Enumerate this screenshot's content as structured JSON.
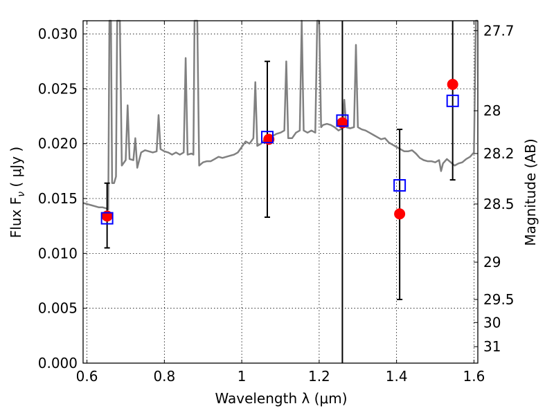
{
  "chart_data": {
    "type": "scatter",
    "title": "",
    "xlabel": "Wavelength  λ (μm)",
    "ylabel": "Flux  F",
    "ylabel_sub": "ν",
    "ylabel_unit": " ( μJy )",
    "y2label": "Magnitude (AB)",
    "xlim": [
      0.59,
      1.61
    ],
    "ylim": [
      0.0,
      0.0312
    ],
    "grid": true,
    "x_ticks": [
      {
        "value": 0.6,
        "label": "0.6"
      },
      {
        "value": 0.8,
        "label": "0.8"
      },
      {
        "value": 1.0,
        "label": "1"
      },
      {
        "value": 1.2,
        "label": "1.2"
      },
      {
        "value": 1.4,
        "label": "1.4"
      },
      {
        "value": 1.6,
        "label": "1.6"
      }
    ],
    "y_ticks": [
      {
        "value": 0.0,
        "label": "0.000"
      },
      {
        "value": 0.005,
        "label": "0.005"
      },
      {
        "value": 0.01,
        "label": "0.010"
      },
      {
        "value": 0.015,
        "label": "0.015"
      },
      {
        "value": 0.02,
        "label": "0.020"
      },
      {
        "value": 0.025,
        "label": "0.025"
      },
      {
        "value": 0.03,
        "label": "0.030"
      }
    ],
    "y2_ticks": [
      {
        "label": "27.7",
        "flux": 0.0303
      },
      {
        "label": "28",
        "flux": 0.023
      },
      {
        "label": "28.2",
        "flux": 0.0191
      },
      {
        "label": "28.5",
        "flux": 0.0145
      },
      {
        "label": "29",
        "flux": 0.0092
      },
      {
        "label": "29.5",
        "flux": 0.0058
      },
      {
        "label": "30",
        "flux": 0.0037
      },
      {
        "label": "31",
        "flux": 0.0015
      }
    ],
    "series": [
      {
        "name": "",
        "kind": "line",
        "color": "#808080",
        "points": [
          [
            0.59,
            0.0146
          ],
          [
            0.6,
            0.0145
          ],
          [
            0.61,
            0.0144
          ],
          [
            0.62,
            0.0143
          ],
          [
            0.63,
            0.0142
          ],
          [
            0.64,
            0.0142
          ],
          [
            0.65,
            0.0141
          ],
          [
            0.655,
            0.014
          ],
          [
            0.658,
            0.0312
          ],
          [
            0.662,
            0.0312
          ],
          [
            0.665,
            0.0164
          ],
          [
            0.67,
            0.0164
          ],
          [
            0.675,
            0.017
          ],
          [
            0.678,
            0.0312
          ],
          [
            0.685,
            0.0312
          ],
          [
            0.69,
            0.018
          ],
          [
            0.7,
            0.0185
          ],
          [
            0.705,
            0.0235
          ],
          [
            0.71,
            0.0186
          ],
          [
            0.72,
            0.0185
          ],
          [
            0.725,
            0.0205
          ],
          [
            0.73,
            0.0178
          ],
          [
            0.74,
            0.0192
          ],
          [
            0.75,
            0.0194
          ],
          [
            0.76,
            0.0193
          ],
          [
            0.77,
            0.0192
          ],
          [
            0.78,
            0.0193
          ],
          [
            0.785,
            0.0226
          ],
          [
            0.79,
            0.0195
          ],
          [
            0.8,
            0.0193
          ],
          [
            0.81,
            0.0192
          ],
          [
            0.82,
            0.019
          ],
          [
            0.83,
            0.0192
          ],
          [
            0.84,
            0.019
          ],
          [
            0.85,
            0.0192
          ],
          [
            0.855,
            0.0278
          ],
          [
            0.86,
            0.019
          ],
          [
            0.87,
            0.0191
          ],
          [
            0.875,
            0.019
          ],
          [
            0.878,
            0.0312
          ],
          [
            0.885,
            0.0312
          ],
          [
            0.89,
            0.018
          ],
          [
            0.9,
            0.0183
          ],
          [
            0.91,
            0.0184
          ],
          [
            0.92,
            0.0184
          ],
          [
            0.93,
            0.0186
          ],
          [
            0.94,
            0.0188
          ],
          [
            0.95,
            0.0187
          ],
          [
            0.96,
            0.0188
          ],
          [
            0.97,
            0.0189
          ],
          [
            0.98,
            0.019
          ],
          [
            0.99,
            0.0192
          ],
          [
            1.0,
            0.0197
          ],
          [
            1.01,
            0.0202
          ],
          [
            1.02,
            0.02
          ],
          [
            1.03,
            0.0205
          ],
          [
            1.035,
            0.0256
          ],
          [
            1.04,
            0.0198
          ],
          [
            1.05,
            0.02
          ],
          [
            1.06,
            0.0204
          ],
          [
            1.07,
            0.0206
          ],
          [
            1.08,
            0.0207
          ],
          [
            1.09,
            0.0209
          ],
          [
            1.1,
            0.021
          ],
          [
            1.11,
            0.0212
          ],
          [
            1.115,
            0.0275
          ],
          [
            1.12,
            0.0205
          ],
          [
            1.13,
            0.0205
          ],
          [
            1.14,
            0.021
          ],
          [
            1.15,
            0.0212
          ],
          [
            1.155,
            0.0312
          ],
          [
            1.16,
            0.0212
          ],
          [
            1.17,
            0.021
          ],
          [
            1.18,
            0.0212
          ],
          [
            1.19,
            0.021
          ],
          [
            1.195,
            0.0312
          ],
          [
            1.2,
            0.0312
          ],
          [
            1.205,
            0.0215
          ],
          [
            1.21,
            0.0217
          ],
          [
            1.22,
            0.0218
          ],
          [
            1.23,
            0.0217
          ],
          [
            1.24,
            0.0215
          ],
          [
            1.25,
            0.0212
          ],
          [
            1.26,
            0.0214
          ],
          [
            1.265,
            0.024
          ],
          [
            1.27,
            0.0215
          ],
          [
            1.28,
            0.0214
          ],
          [
            1.29,
            0.0215
          ],
          [
            1.295,
            0.029
          ],
          [
            1.3,
            0.0215
          ],
          [
            1.31,
            0.0213
          ],
          [
            1.32,
            0.0212
          ],
          [
            1.33,
            0.021
          ],
          [
            1.34,
            0.0208
          ],
          [
            1.35,
            0.0206
          ],
          [
            1.36,
            0.0204
          ],
          [
            1.37,
            0.0205
          ],
          [
            1.38,
            0.0201
          ],
          [
            1.39,
            0.0199
          ],
          [
            1.4,
            0.0197
          ],
          [
            1.41,
            0.0195
          ],
          [
            1.42,
            0.0193
          ],
          [
            1.43,
            0.0193
          ],
          [
            1.44,
            0.0194
          ],
          [
            1.45,
            0.0191
          ],
          [
            1.46,
            0.0187
          ],
          [
            1.47,
            0.0185
          ],
          [
            1.48,
            0.0184
          ],
          [
            1.49,
            0.0184
          ],
          [
            1.5,
            0.0183
          ],
          [
            1.51,
            0.0185
          ],
          [
            1.515,
            0.0175
          ],
          [
            1.52,
            0.0182
          ],
          [
            1.53,
            0.0186
          ],
          [
            1.54,
            0.0183
          ],
          [
            1.55,
            0.018
          ],
          [
            1.56,
            0.0182
          ],
          [
            1.57,
            0.0183
          ],
          [
            1.58,
            0.0186
          ],
          [
            1.59,
            0.0188
          ],
          [
            1.6,
            0.0192
          ],
          [
            1.605,
            0.0312
          ],
          [
            1.61,
            0.0312
          ]
        ]
      },
      {
        "name": "",
        "kind": "points",
        "marker": "circle",
        "color": "#ff0000",
        "points": [
          {
            "x": 0.652,
            "y": 0.0134
          },
          {
            "x": 1.07,
            "y": 0.0204
          },
          {
            "x": 1.26,
            "y": 0.0219
          },
          {
            "x": 1.408,
            "y": 0.0136
          },
          {
            "x": 1.545,
            "y": 0.0254
          }
        ]
      },
      {
        "name": "",
        "kind": "points",
        "marker": "square",
        "color": "#0000ff",
        "points": [
          {
            "x": 0.652,
            "y": 0.0132,
            "err": [
              0.0105,
              0.0164
            ]
          },
          {
            "x": 1.066,
            "y": 0.0206,
            "err": [
              0.0133,
              0.0275
            ]
          },
          {
            "x": 1.26,
            "y": 0.0221,
            "err": [
              0.0,
              0.0312
            ]
          },
          {
            "x": 1.408,
            "y": 0.0162,
            "err": [
              0.0058,
              0.0213
            ]
          },
          {
            "x": 1.545,
            "y": 0.0239,
            "err": [
              0.0167,
              0.0312
            ]
          }
        ]
      }
    ]
  }
}
